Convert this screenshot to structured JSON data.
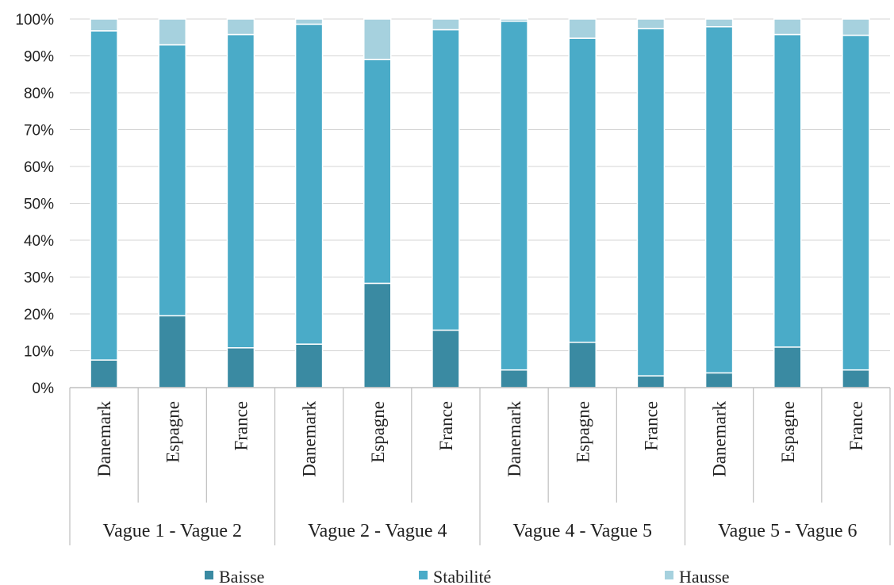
{
  "chart_data": {
    "type": "bar",
    "stacked": true,
    "percent": true,
    "groups": [
      "Vague 1 - Vague 2",
      "Vague 2 - Vague 4",
      "Vague 4 - Vague 5",
      "Vague 5 - Vague 6"
    ],
    "countries": [
      "Danemark",
      "Espagne",
      "France"
    ],
    "series": [
      {
        "name": "Baisse",
        "color": "#3a8aa2",
        "values": [
          7.5,
          19.5,
          10.8,
          11.8,
          28.3,
          15.6,
          4.8,
          12.3,
          3.2,
          4.0,
          11.0,
          4.8
        ]
      },
      {
        "name": "Stabilité",
        "color": "#4aabc8",
        "values": [
          89.3,
          73.5,
          85.0,
          86.8,
          60.7,
          81.5,
          94.6,
          82.5,
          94.2,
          93.9,
          84.8,
          90.8
        ]
      },
      {
        "name": "Hausse",
        "color": "#a6d1de",
        "values": [
          3.2,
          7.0,
          4.2,
          1.4,
          11.0,
          2.9,
          0.6,
          5.2,
          2.6,
          2.1,
          4.2,
          4.4
        ]
      }
    ],
    "yticks": [
      "0%",
      "10%",
      "20%",
      "30%",
      "40%",
      "50%",
      "60%",
      "70%",
      "80%",
      "90%",
      "100%"
    ],
    "ylim": [
      0,
      100
    ],
    "grid": true,
    "legend_position": "bottom"
  }
}
